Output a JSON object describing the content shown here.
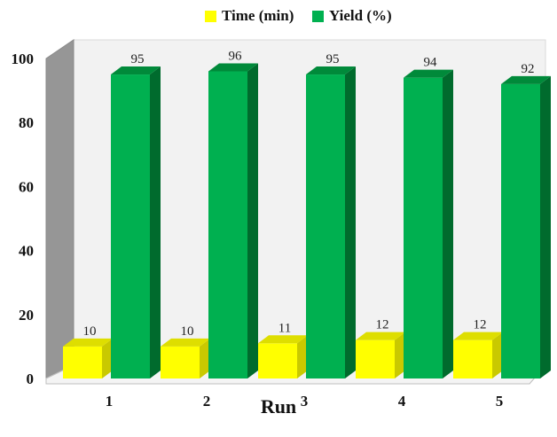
{
  "chart_data": {
    "type": "bar",
    "categories": [
      "1",
      "2",
      "3",
      "4",
      "5"
    ],
    "series": [
      {
        "name": "Time (min)",
        "values": [
          10,
          10,
          11,
          12,
          12
        ],
        "color": "#ffff00",
        "top_color": "#dede00",
        "side_color": "#c9c900"
      },
      {
        "name": "Yield (%)",
        "values": [
          95,
          96,
          95,
          94,
          92
        ],
        "color": "#00b050",
        "top_color": "#008a3a",
        "side_color": "#006b2d"
      }
    ],
    "xlabel": "Run",
    "ylabel": "",
    "ylim": [
      0,
      100
    ],
    "yticks": [
      0,
      20,
      40,
      60,
      80,
      100
    ],
    "grid": false,
    "legend_position": "top-center",
    "style": "3d-clustered-column"
  }
}
